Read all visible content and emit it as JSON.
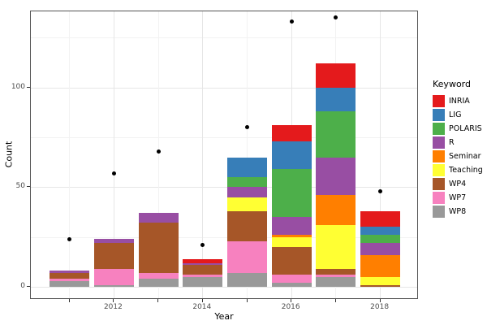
{
  "chart_data": {
    "type": "bar",
    "stacked": true,
    "title": "",
    "xlabel": "Year",
    "ylabel": "Count",
    "legend_title": "Keyword",
    "legend_position": "right",
    "grid": true,
    "x": [
      2011,
      2012,
      2013,
      2014,
      2015,
      2016,
      2017,
      2018
    ],
    "x_tick_years": [
      2012,
      2014,
      2016,
      2018
    ],
    "x_tick_labels": [
      "2012",
      "2014",
      "2016",
      "2018"
    ],
    "y_ticks": [
      0,
      50,
      100
    ],
    "y_tick_labels": [
      "0",
      "50",
      "100"
    ],
    "y_minor_ticks": [
      25,
      75,
      125
    ],
    "ylim": [
      0,
      140
    ],
    "series": [
      {
        "name": "INRIA",
        "color": "#E41A1C",
        "values": [
          0,
          0,
          0,
          2,
          0,
          8,
          12,
          8
        ]
      },
      {
        "name": "LIG",
        "color": "#377EB8",
        "values": [
          0,
          0,
          0,
          0,
          10,
          14,
          12,
          4
        ]
      },
      {
        "name": "POLARIS",
        "color": "#4DAF4A",
        "values": [
          0,
          0,
          0,
          0,
          5,
          24,
          23,
          4
        ]
      },
      {
        "name": "R",
        "color": "#984EA3",
        "values": [
          1,
          2,
          5,
          1,
          5,
          9,
          19,
          6
        ]
      },
      {
        "name": "Seminar",
        "color": "#FF7F00",
        "values": [
          0,
          0,
          0,
          0,
          0,
          1,
          15,
          11
        ]
      },
      {
        "name": "Teaching",
        "color": "#FFFF33",
        "values": [
          0,
          0,
          0,
          0,
          7,
          5,
          22,
          4
        ]
      },
      {
        "name": "WP4",
        "color": "#A65628",
        "values": [
          3,
          13,
          25,
          5,
          15,
          14,
          3,
          1
        ]
      },
      {
        "name": "WP7",
        "color": "#F781BF",
        "values": [
          1,
          8,
          3,
          1,
          16,
          4,
          1,
          0
        ]
      },
      {
        "name": "WP8",
        "color": "#999999",
        "values": [
          3,
          1,
          4,
          5,
          7,
          2,
          5,
          0
        ]
      }
    ],
    "bar_totals": [
      8,
      24,
      37,
      14,
      65,
      81,
      112,
      38
    ],
    "points": {
      "label": "yearly-dots",
      "color": "#000000",
      "values": [
        24,
        57,
        68,
        21,
        80,
        133,
        135,
        48
      ]
    }
  }
}
